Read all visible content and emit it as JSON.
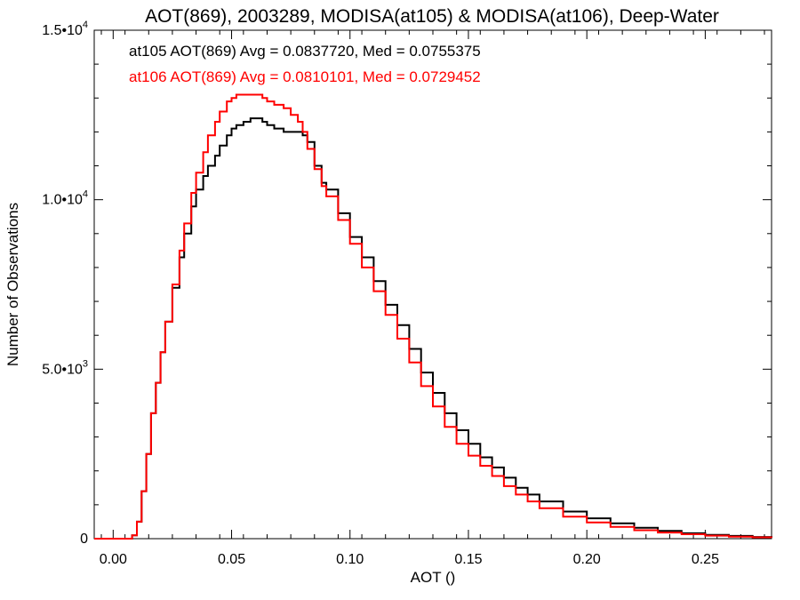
{
  "chart_data": {
    "type": "line",
    "title": "AOT(869), 2003289, MODISA(at105) & MODISA(at106), Deep-Water",
    "xlabel": "AOT ()",
    "ylabel": "Number of Observations",
    "xlim": [
      -0.008,
      0.278
    ],
    "ylim": [
      0,
      15000
    ],
    "x_ticks": [
      {
        "value": 0.0,
        "label": "0.00"
      },
      {
        "value": 0.05,
        "label": "0.05"
      },
      {
        "value": 0.1,
        "label": "0.10"
      },
      {
        "value": 0.15,
        "label": "0.15"
      },
      {
        "value": 0.2,
        "label": "0.20"
      },
      {
        "value": 0.25,
        "label": "0.25"
      }
    ],
    "y_ticks": [
      {
        "value": 0,
        "mantissa": "0",
        "exponent": ""
      },
      {
        "value": 5000,
        "mantissa": "5.0•10",
        "exponent": "3"
      },
      {
        "value": 10000,
        "mantissa": "1.0•10",
        "exponent": "4"
      },
      {
        "value": 15000,
        "mantissa": "1.5•10",
        "exponent": "4"
      }
    ],
    "grid": false,
    "legend_position": "top-left",
    "series": [
      {
        "name": "at105 AOT(869) Avg = 0.0837720, Med = 0.0755375",
        "color": "#000000",
        "x": [
          -0.008,
          0.0,
          0.006,
          0.008,
          0.01,
          0.012,
          0.014,
          0.016,
          0.018,
          0.02,
          0.022,
          0.025,
          0.028,
          0.03,
          0.033,
          0.035,
          0.038,
          0.04,
          0.043,
          0.045,
          0.048,
          0.05,
          0.052,
          0.055,
          0.058,
          0.06,
          0.063,
          0.065,
          0.068,
          0.07,
          0.072,
          0.075,
          0.078,
          0.08,
          0.082,
          0.085,
          0.088,
          0.09,
          0.095,
          0.1,
          0.105,
          0.11,
          0.115,
          0.12,
          0.125,
          0.13,
          0.135,
          0.14,
          0.145,
          0.15,
          0.155,
          0.16,
          0.165,
          0.17,
          0.175,
          0.18,
          0.19,
          0.2,
          0.21,
          0.22,
          0.23,
          0.24,
          0.25,
          0.26,
          0.27,
          0.278
        ],
        "values": [
          0,
          0,
          0,
          100,
          500,
          1400,
          2500,
          3700,
          4600,
          5500,
          6400,
          7400,
          8300,
          9000,
          9800,
          10300,
          10700,
          11000,
          11300,
          11600,
          11900,
          12100,
          12200,
          12300,
          12400,
          12400,
          12300,
          12200,
          12100,
          12100,
          12000,
          12000,
          12000,
          11900,
          11700,
          11000,
          10500,
          10300,
          9600,
          8900,
          8300,
          7600,
          6900,
          6300,
          5600,
          4900,
          4300,
          3700,
          3200,
          2800,
          2400,
          2100,
          1800,
          1500,
          1300,
          1100,
          800,
          600,
          450,
          320,
          230,
          160,
          110,
          80,
          50,
          30
        ]
      },
      {
        "name": "at106 AOT(869) Avg = 0.0810101, Med = 0.0729452",
        "color": "#ff0000",
        "x": [
          -0.008,
          0.0,
          0.006,
          0.008,
          0.01,
          0.012,
          0.014,
          0.016,
          0.018,
          0.02,
          0.022,
          0.025,
          0.028,
          0.03,
          0.033,
          0.035,
          0.038,
          0.04,
          0.043,
          0.045,
          0.048,
          0.05,
          0.052,
          0.055,
          0.058,
          0.06,
          0.063,
          0.065,
          0.068,
          0.07,
          0.072,
          0.075,
          0.078,
          0.08,
          0.082,
          0.085,
          0.088,
          0.09,
          0.095,
          0.1,
          0.105,
          0.11,
          0.115,
          0.12,
          0.125,
          0.13,
          0.135,
          0.14,
          0.145,
          0.15,
          0.155,
          0.16,
          0.165,
          0.17,
          0.175,
          0.18,
          0.19,
          0.2,
          0.21,
          0.22,
          0.23,
          0.24,
          0.25,
          0.26,
          0.27,
          0.278
        ],
        "values": [
          0,
          0,
          0,
          100,
          500,
          1400,
          2500,
          3700,
          4600,
          5500,
          6400,
          7500,
          8500,
          9300,
          10200,
          10800,
          11400,
          11900,
          12300,
          12600,
          12900,
          13000,
          13100,
          13100,
          13100,
          13100,
          13000,
          12900,
          12800,
          12800,
          12700,
          12500,
          12300,
          12000,
          11500,
          10900,
          10400,
          10100,
          9400,
          8700,
          8000,
          7300,
          6600,
          5900,
          5200,
          4500,
          3900,
          3300,
          2800,
          2450,
          2150,
          1850,
          1550,
          1300,
          1100,
          900,
          650,
          480,
          350,
          250,
          180,
          130,
          90,
          60,
          40,
          25
        ]
      }
    ]
  }
}
